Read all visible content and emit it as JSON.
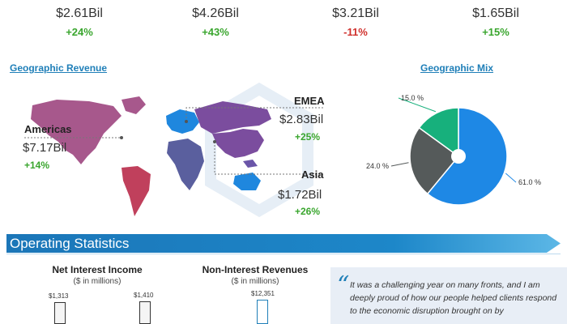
{
  "kpis": [
    {
      "value": "$2.61Bil",
      "change": "+24%",
      "direction": "up"
    },
    {
      "value": "$4.26Bil",
      "change": "+43%",
      "direction": "up"
    },
    {
      "value": "$3.21Bil",
      "change": "-11%",
      "direction": "down"
    },
    {
      "value": "$1.65Bil",
      "change": "+15%",
      "direction": "up"
    }
  ],
  "geo_revenue": {
    "title": "Geographic Revenue",
    "regions": [
      {
        "name": "Americas",
        "value": "$7.17Bil",
        "change": "+14%"
      },
      {
        "name": "EMEA",
        "value": "$2.83Bil",
        "change": "+25%"
      },
      {
        "name": "Asia",
        "value": "$1.72Bil",
        "change": "+26%"
      }
    ]
  },
  "operating": {
    "title": "Operating Statistics",
    "net_interest": {
      "title": "Net Interest Income",
      "subtitle": "($ in millions)"
    },
    "non_interest": {
      "title": "Non-Interest Revenues",
      "subtitle": "($ in millions)"
    },
    "quote": "It was a challenging year on many fronts, and I am deeply proud of how our people helped clients respond to the economic disruption brought on by"
  },
  "colors": {
    "accent": "#1f7fb8",
    "positive": "#3aa62e",
    "negative": "#d0312d"
  },
  "chart_data": [
    {
      "type": "pie",
      "title": "Geographic Mix",
      "slices": [
        {
          "value": 61.0,
          "label": "61.0 %",
          "color": "#1e88e5"
        },
        {
          "value": 24.0,
          "label": "24.0 %",
          "color": "#555a5a"
        },
        {
          "value": 15.0,
          "label": "15.0 %",
          "color": "#17b07c"
        }
      ]
    },
    {
      "type": "bar",
      "title": "Net Interest Income",
      "ylabel": "($ in millions)",
      "values": [
        1313,
        1410
      ],
      "labels": [
        "$1,313",
        "$1,410"
      ]
    },
    {
      "type": "bar",
      "title": "Non-Interest Revenues",
      "ylabel": "($ in millions)",
      "values": [
        12351
      ],
      "labels": [
        "$12,351"
      ]
    }
  ]
}
